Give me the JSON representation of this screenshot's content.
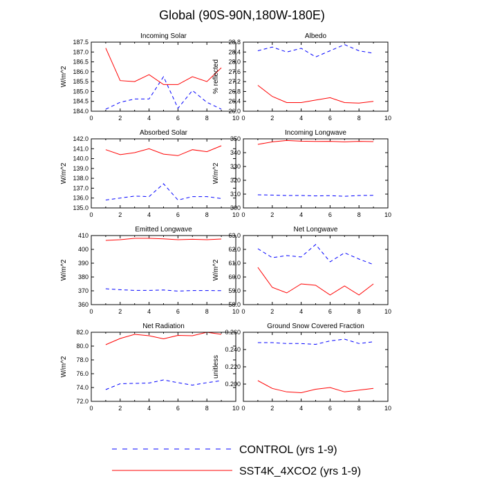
{
  "title": "Global (90S-90N,180W-180E)",
  "legend": {
    "control_label": "CONTROL (yrs 1-9)",
    "sst_label": "SST4K_4XCO2 (yrs 1-9)"
  },
  "colors": {
    "control": "#0000ff",
    "sst": "#ff0000",
    "axis": "#000000"
  },
  "chart_data": [
    {
      "type": "line",
      "title": "Incoming Solar",
      "ylabel": "W/m^2",
      "xlim": [
        0,
        10
      ],
      "ylim": [
        184.0,
        187.5
      ],
      "xticks": [
        "0",
        "2",
        "4",
        "6",
        "8",
        "10"
      ],
      "yticks": [
        "184.0",
        "184.5",
        "185.0",
        "185.5",
        "186.0",
        "186.5",
        "187.0",
        "187.5"
      ],
      "x": [
        1,
        2,
        3,
        4,
        5,
        6,
        7,
        8,
        9
      ],
      "series": [
        {
          "name": "CONTROL (yrs 1-9)",
          "values": [
            184.1,
            184.45,
            184.62,
            184.62,
            185.75,
            184.15,
            185.05,
            184.45,
            184.1
          ]
        },
        {
          "name": "SST4K_4XCO2 (yrs 1-9)",
          "values": [
            187.2,
            185.55,
            185.5,
            185.85,
            185.35,
            185.35,
            185.75,
            185.5,
            186.2
          ]
        }
      ]
    },
    {
      "type": "line",
      "title": "Albedo",
      "ylabel": "% reflected",
      "xlim": [
        0,
        10
      ],
      "ylim": [
        26.0,
        28.8
      ],
      "xticks": [
        "0",
        "2",
        "4",
        "6",
        "8",
        "10"
      ],
      "yticks": [
        "26.0",
        "26.4",
        "26.8",
        "27.2",
        "27.6",
        "28.0",
        "28.4",
        "28.8"
      ],
      "x": [
        1,
        2,
        3,
        4,
        5,
        6,
        7,
        8,
        9
      ],
      "series": [
        {
          "name": "CONTROL (yrs 1-9)",
          "values": [
            28.45,
            28.6,
            28.4,
            28.55,
            28.2,
            28.45,
            28.7,
            28.45,
            28.35
          ]
        },
        {
          "name": "SST4K_4XCO2 (yrs 1-9)",
          "values": [
            27.05,
            26.6,
            26.35,
            26.35,
            26.45,
            26.55,
            26.35,
            26.33,
            26.4
          ]
        }
      ]
    },
    {
      "type": "line",
      "title": "Absorbed Solar",
      "ylabel": "W/m^2",
      "xlim": [
        0,
        10
      ],
      "ylim": [
        135.0,
        142.0
      ],
      "xticks": [
        "0",
        "2",
        "4",
        "6",
        "8",
        "10"
      ],
      "yticks": [
        "135.0",
        "136.0",
        "137.0",
        "138.0",
        "139.0",
        "140.0",
        "141.0",
        "142.0"
      ],
      "x": [
        1,
        2,
        3,
        4,
        5,
        6,
        7,
        8,
        9
      ],
      "series": [
        {
          "name": "CONTROL (yrs 1-9)",
          "values": [
            135.8,
            136.0,
            136.2,
            136.15,
            137.45,
            135.8,
            136.15,
            136.15,
            135.95
          ]
        },
        {
          "name": "SST4K_4XCO2 (yrs 1-9)",
          "values": [
            140.9,
            140.4,
            140.6,
            141.0,
            140.45,
            140.3,
            140.9,
            140.7,
            141.3
          ]
        }
      ]
    },
    {
      "type": "line",
      "title": "Incoming Longwave",
      "ylabel": "W/m^2",
      "xlim": [
        0,
        10
      ],
      "ylim": [
        300,
        350
      ],
      "xticks": [
        "0",
        "2",
        "4",
        "6",
        "8",
        "10"
      ],
      "yticks": [
        "300",
        "310",
        "320",
        "330",
        "340",
        "350"
      ],
      "x": [
        1,
        2,
        3,
        4,
        5,
        6,
        7,
        8,
        9
      ],
      "series": [
        {
          "name": "CONTROL (yrs 1-9)",
          "values": [
            309.5,
            309.3,
            309.0,
            309.0,
            308.7,
            308.9,
            308.4,
            309.0,
            309.1
          ]
        },
        {
          "name": "SST4K_4XCO2 (yrs 1-9)",
          "values": [
            346.0,
            347.8,
            348.8,
            348.3,
            348.1,
            348.2,
            347.8,
            348.2,
            348.0
          ]
        }
      ]
    },
    {
      "type": "line",
      "title": "Emitted Longwave",
      "ylabel": "W/m^2",
      "xlim": [
        0,
        10
      ],
      "ylim": [
        360,
        410
      ],
      "xticks": [
        "0",
        "2",
        "4",
        "6",
        "8",
        "10"
      ],
      "yticks": [
        "360",
        "370",
        "380",
        "390",
        "400",
        "410"
      ],
      "x": [
        1,
        2,
        3,
        4,
        5,
        6,
        7,
        8,
        9
      ],
      "series": [
        {
          "name": "CONTROL (yrs 1-9)",
          "values": [
            371.5,
            370.8,
            370.3,
            370.3,
            370.6,
            369.8,
            370.2,
            370.2,
            370.1
          ]
        },
        {
          "name": "SST4K_4XCO2 (yrs 1-9)",
          "values": [
            406.5,
            407.0,
            408.0,
            408.0,
            407.6,
            407.0,
            407.3,
            407.0,
            407.5
          ]
        }
      ]
    },
    {
      "type": "line",
      "title": "Net Longwave",
      "ylabel": "W/m^2",
      "xlim": [
        0,
        10
      ],
      "ylim": [
        58.0,
        63.0
      ],
      "xticks": [
        "0",
        "2",
        "4",
        "6",
        "8",
        "10"
      ],
      "yticks": [
        "58.0",
        "59.0",
        "60.0",
        "61.0",
        "62.0",
        "63.0"
      ],
      "x": [
        1,
        2,
        3,
        4,
        5,
        6,
        7,
        8,
        9
      ],
      "series": [
        {
          "name": "CONTROL (yrs 1-9)",
          "values": [
            62.05,
            61.4,
            61.55,
            61.45,
            62.35,
            61.1,
            61.75,
            61.3,
            60.9
          ]
        },
        {
          "name": "SST4K_4XCO2 (yrs 1-9)",
          "values": [
            60.7,
            59.25,
            58.85,
            59.5,
            59.4,
            58.7,
            59.35,
            58.7,
            59.5
          ]
        }
      ]
    },
    {
      "type": "line",
      "title": "Net Radiation",
      "ylabel": "W/m^2",
      "xlim": [
        0,
        10
      ],
      "ylim": [
        72.0,
        82.0
      ],
      "xticks": [
        "0",
        "2",
        "4",
        "6",
        "8",
        "10"
      ],
      "yticks": [
        "72.0",
        "74.0",
        "76.0",
        "78.0",
        "80.0",
        "82.0"
      ],
      "x": [
        1,
        2,
        3,
        4,
        5,
        6,
        7,
        8,
        9
      ],
      "series": [
        {
          "name": "CONTROL (yrs 1-9)",
          "values": [
            73.7,
            74.55,
            74.6,
            74.65,
            75.1,
            74.7,
            74.35,
            74.7,
            75.0
          ]
        },
        {
          "name": "SST4K_4XCO2 (yrs 1-9)",
          "values": [
            80.2,
            81.1,
            81.7,
            81.5,
            81.05,
            81.55,
            81.5,
            82.0,
            81.7
          ]
        }
      ]
    },
    {
      "type": "line",
      "title": "Ground Snow Covered Fraction",
      "ylabel": "unitless",
      "xlim": [
        0,
        10
      ],
      "ylim": [
        0.18,
        0.26
      ],
      "xticks": [
        "0",
        "2",
        "4",
        "6",
        "8",
        "10"
      ],
      "yticks": [
        "0.200",
        "0.220",
        "0.240",
        "0.260"
      ],
      "ytickvals": [
        0.2,
        0.22,
        0.24,
        0.26
      ],
      "x": [
        1,
        2,
        3,
        4,
        5,
        6,
        7,
        8,
        9
      ],
      "series": [
        {
          "name": "CONTROL (yrs 1-9)",
          "values": [
            0.248,
            0.248,
            0.247,
            0.247,
            0.246,
            0.25,
            0.252,
            0.247,
            0.249
          ]
        },
        {
          "name": "SST4K_4XCO2 (yrs 1-9)",
          "values": [
            0.204,
            0.195,
            0.191,
            0.19,
            0.194,
            0.196,
            0.191,
            0.193,
            0.195
          ]
        }
      ]
    }
  ]
}
